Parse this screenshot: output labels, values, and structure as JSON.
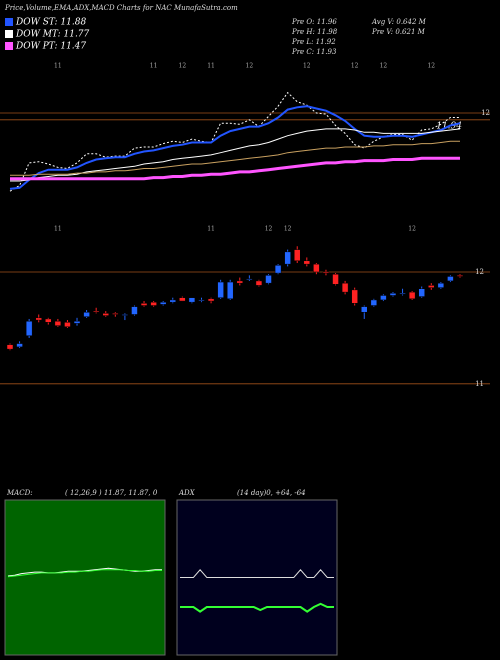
{
  "header": {
    "title": "Price,Volume,EMA,ADX,MACD Charts for NAC MunafaSutra.com",
    "legend": [
      {
        "label": "DOW ST: 11.88",
        "color": "#2255ff"
      },
      {
        "label": "DOW MT: 11.77",
        "color": "#ffffff"
      },
      {
        "label": "DOW PT: 11.47",
        "color": "#ff55ff"
      }
    ],
    "stats_left": [
      "Pre O: 11.96",
      "Pre H: 11.98",
      "Pre L: 11.92",
      "Pre C: 11.93"
    ],
    "stats_right": [
      "Avg V: 0.642 M",
      "Pre V: 0.621 M"
    ]
  },
  "chart_data": [
    {
      "type": "line",
      "categories": [
        null,
        null,
        null,
        null,
        null,
        "11",
        null,
        null,
        null,
        null,
        null,
        null,
        null,
        null,
        null,
        "11",
        null,
        null,
        "12",
        null,
        null,
        "11",
        null,
        null,
        null,
        "12",
        null,
        null,
        null,
        null,
        null,
        "12",
        null,
        null,
        null,
        null,
        "12",
        null,
        null,
        "12",
        null,
        null,
        null,
        null,
        "12",
        null,
        null,
        null
      ],
      "series": [
        {
          "color": "#ffffff",
          "dash": true,
          "values": [
            11.31,
            11.36,
            11.56,
            11.57,
            11.55,
            11.52,
            11.51,
            11.56,
            11.64,
            11.64,
            11.61,
            11.62,
            11.62,
            11.69,
            11.7,
            11.7,
            11.73,
            11.75,
            11.74,
            11.77,
            11.75,
            11.74,
            11.91,
            11.91,
            11.9,
            11.94,
            11.88,
            11.97,
            12.06,
            12.18,
            12.1,
            12.07,
            12.0,
            11.99,
            11.89,
            11.82,
            11.72,
            11.69,
            11.75,
            11.79,
            11.81,
            11.81,
            11.76,
            11.85,
            11.86,
            11.9,
            11.96,
            11.96
          ]
        },
        {
          "color": "#2255ff",
          "width": 2,
          "values": [
            11.33,
            11.34,
            11.41,
            11.47,
            11.5,
            11.5,
            11.5,
            11.52,
            11.56,
            11.59,
            11.6,
            11.61,
            11.61,
            11.64,
            11.66,
            11.67,
            11.69,
            11.71,
            11.72,
            11.74,
            11.74,
            11.74,
            11.8,
            11.84,
            11.86,
            11.88,
            11.88,
            11.91,
            11.96,
            12.03,
            12.05,
            12.06,
            12.04,
            12.02,
            11.98,
            11.93,
            11.86,
            11.8,
            11.79,
            11.79,
            11.8,
            11.8,
            11.79,
            11.81,
            11.83,
            11.85,
            11.89,
            11.91
          ]
        },
        {
          "color": "#ffffff",
          "width": 1,
          "values": [
            11.4,
            11.4,
            11.41,
            11.43,
            11.44,
            11.45,
            11.45,
            11.46,
            11.48,
            11.49,
            11.5,
            11.51,
            11.52,
            11.53,
            11.55,
            11.56,
            11.57,
            11.59,
            11.6,
            11.61,
            11.62,
            11.63,
            11.65,
            11.67,
            11.69,
            11.71,
            11.72,
            11.74,
            11.77,
            11.8,
            11.82,
            11.84,
            11.85,
            11.86,
            11.86,
            11.86,
            11.85,
            11.83,
            11.83,
            11.82,
            11.82,
            11.82,
            11.82,
            11.82,
            11.83,
            11.84,
            11.85,
            11.86
          ]
        },
        {
          "color": "#c8a060",
          "width": 1,
          "values": [
            11.45,
            11.45,
            11.45,
            11.46,
            11.46,
            11.46,
            11.46,
            11.47,
            11.47,
            11.48,
            11.48,
            11.49,
            11.49,
            11.5,
            11.51,
            11.51,
            11.52,
            11.53,
            11.54,
            11.55,
            11.55,
            11.56,
            11.57,
            11.58,
            11.59,
            11.6,
            11.61,
            11.62,
            11.63,
            11.65,
            11.66,
            11.67,
            11.68,
            11.69,
            11.69,
            11.7,
            11.7,
            11.7,
            11.71,
            11.71,
            11.72,
            11.72,
            11.72,
            11.73,
            11.73,
            11.74,
            11.75,
            11.75
          ]
        },
        {
          "color": "#ff55ff",
          "width": 3,
          "values": [
            11.42,
            11.42,
            11.42,
            11.42,
            11.42,
            11.42,
            11.42,
            11.42,
            11.42,
            11.42,
            11.42,
            11.42,
            11.42,
            11.42,
            11.42,
            11.43,
            11.43,
            11.44,
            11.44,
            11.45,
            11.45,
            11.46,
            11.46,
            11.47,
            11.48,
            11.48,
            11.49,
            11.5,
            11.51,
            11.52,
            11.53,
            11.54,
            11.55,
            11.56,
            11.56,
            11.57,
            11.57,
            11.58,
            11.58,
            11.58,
            11.59,
            11.59,
            11.59,
            11.6,
            11.6,
            11.6,
            11.6,
            11.6
          ]
        }
      ],
      "ylim": [
        11.1,
        12.45
      ],
      "yticks": [
        12
      ],
      "price_line": 11.94,
      "grid_color": "#a0501a"
    },
    {
      "type": "candlestick",
      "categories": [
        null,
        null,
        null,
        null,
        null,
        "11",
        null,
        null,
        null,
        null,
        null,
        null,
        null,
        null,
        null,
        null,
        null,
        null,
        null,
        null,
        null,
        "11",
        null,
        null,
        null,
        null,
        null,
        "12",
        null,
        "12",
        null,
        null,
        null,
        null,
        null,
        null,
        null,
        null,
        null,
        null,
        null,
        null,
        "12",
        null,
        null,
        null,
        null,
        null
      ],
      "open": [
        11.35,
        11.33,
        11.43,
        11.59,
        11.58,
        11.56,
        11.55,
        11.54,
        11.6,
        11.65,
        11.63,
        11.63,
        11.62,
        11.62,
        11.72,
        11.73,
        11.71,
        11.73,
        11.77,
        11.73,
        11.75,
        11.76,
        11.77,
        11.76,
        11.92,
        11.94,
        11.92,
        11.9,
        11.99,
        12.07,
        12.2,
        12.1,
        12.07,
        12.0,
        11.98,
        11.9,
        11.84,
        11.64,
        11.7,
        11.75,
        11.79,
        11.81,
        11.82,
        11.78,
        11.88,
        11.86,
        11.92,
        11.97
      ],
      "high": [
        11.36,
        11.38,
        11.58,
        11.62,
        11.59,
        11.58,
        11.57,
        11.59,
        11.66,
        11.68,
        11.65,
        11.64,
        11.63,
        11.7,
        11.74,
        11.74,
        11.74,
        11.77,
        11.78,
        11.77,
        11.77,
        11.77,
        11.93,
        11.93,
        11.95,
        11.97,
        11.93,
        11.98,
        12.07,
        12.2,
        12.23,
        12.13,
        12.08,
        12.02,
        11.99,
        11.92,
        11.86,
        11.7,
        11.76,
        11.8,
        11.82,
        11.85,
        11.83,
        11.87,
        11.9,
        11.91,
        11.97,
        11.98
      ],
      "low": [
        11.3,
        11.32,
        11.41,
        11.55,
        11.53,
        11.51,
        11.5,
        11.52,
        11.59,
        11.63,
        11.6,
        11.6,
        11.57,
        11.61,
        11.69,
        11.69,
        11.7,
        11.72,
        11.74,
        11.72,
        11.73,
        11.72,
        11.76,
        11.75,
        11.88,
        11.92,
        11.87,
        11.89,
        11.98,
        12.05,
        12.08,
        12.05,
        11.98,
        11.97,
        11.88,
        11.8,
        11.7,
        11.58,
        11.69,
        11.74,
        11.78,
        11.79,
        11.75,
        11.77,
        11.84,
        11.85,
        11.91,
        11.95
      ],
      "close": [
        11.31,
        11.36,
        11.56,
        11.57,
        11.55,
        11.52,
        11.51,
        11.56,
        11.64,
        11.64,
        11.61,
        11.62,
        11.62,
        11.69,
        11.7,
        11.7,
        11.73,
        11.75,
        11.74,
        11.77,
        11.75,
        11.74,
        11.91,
        11.91,
        11.9,
        11.94,
        11.88,
        11.97,
        12.06,
        12.18,
        12.1,
        12.07,
        12.0,
        11.99,
        11.89,
        11.82,
        11.72,
        11.69,
        11.75,
        11.79,
        11.81,
        11.81,
        11.76,
        11.85,
        11.86,
        11.9,
        11.96,
        11.96
      ],
      "up_color": "#2266ff",
      "down_color": "#ff2222",
      "ylim": [
        10.14,
        12.42
      ],
      "yticks": [
        11,
        12
      ],
      "grid_color": "#a0501a"
    },
    {
      "type": "line",
      "title": "MACD:",
      "subtitle": "( 12,26,9 ) 11.87, 11.87, 0",
      "background": "#006400",
      "series": [
        {
          "color": "#ffffff",
          "width": 1,
          "values": [
            0.02,
            0.03,
            0.05,
            0.06,
            0.07,
            0.07,
            0.06,
            0.06,
            0.07,
            0.08,
            0.08,
            0.08,
            0.09,
            0.1,
            0.11,
            0.12,
            0.11,
            0.1,
            0.09,
            0.08,
            0.08,
            0.09,
            0.1,
            0.1
          ]
        },
        {
          "color": "#33ff33",
          "width": 1,
          "values": [
            0.01,
            0.02,
            0.03,
            0.04,
            0.05,
            0.06,
            0.06,
            0.06,
            0.06,
            0.07,
            0.07,
            0.08,
            0.08,
            0.09,
            0.1,
            0.1,
            0.1,
            0.1,
            0.09,
            0.09,
            0.08,
            0.08,
            0.09,
            0.09
          ]
        }
      ],
      "ylim": [
        -1,
        1
      ]
    },
    {
      "type": "line",
      "title": "ADX",
      "subtitle": "(14 day)0, +64, -64",
      "background": "#00001e",
      "series": [
        {
          "color": "#dddddd",
          "width": 1,
          "values": [
            50,
            50,
            50,
            55,
            50,
            50,
            50,
            50,
            50,
            50,
            50,
            50,
            50,
            50,
            50,
            50,
            50,
            50,
            55,
            50,
            50,
            55,
            50,
            50
          ]
        },
        {
          "color": "#33ff33",
          "width": 2,
          "values": [
            31,
            31,
            31,
            28,
            31,
            31,
            31,
            31,
            31,
            31,
            31,
            31,
            29,
            31,
            31,
            31,
            31,
            31,
            31,
            28,
            31,
            33,
            31,
            31
          ]
        }
      ],
      "ylim": [
        0,
        100
      ]
    }
  ]
}
